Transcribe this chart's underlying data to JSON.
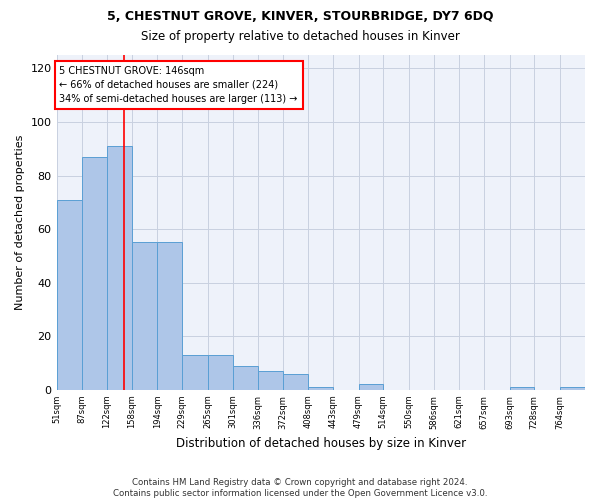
{
  "title": "5, CHESTNUT GROVE, KINVER, STOURBRIDGE, DY7 6DQ",
  "subtitle": "Size of property relative to detached houses in Kinver",
  "xlabel": "Distribution of detached houses by size in Kinver",
  "ylabel": "Number of detached properties",
  "bin_labels": [
    "51sqm",
    "87sqm",
    "122sqm",
    "158sqm",
    "194sqm",
    "229sqm",
    "265sqm",
    "301sqm",
    "336sqm",
    "372sqm",
    "408sqm",
    "443sqm",
    "479sqm",
    "514sqm",
    "550sqm",
    "586sqm",
    "621sqm",
    "657sqm",
    "693sqm",
    "728sqm",
    "764sqm"
  ],
  "bin_edges": [
    51,
    87,
    122,
    158,
    194,
    229,
    265,
    301,
    336,
    372,
    408,
    443,
    479,
    514,
    550,
    586,
    621,
    657,
    693,
    728,
    764,
    800
  ],
  "bar_heights": [
    71,
    87,
    91,
    55,
    55,
    13,
    13,
    9,
    7,
    6,
    1,
    0,
    2,
    0,
    0,
    0,
    0,
    0,
    1,
    0,
    1
  ],
  "bar_color": "#aec6e8",
  "bar_edge_color": "#5a9fd4",
  "vline_x": 146,
  "vline_color": "red",
  "annotation_line1": "5 CHESTNUT GROVE: 146sqm",
  "annotation_line2": "← 66% of detached houses are smaller (224)",
  "annotation_line3": "34% of semi-detached houses are larger (113) →",
  "annotation_box_color": "white",
  "annotation_box_edge_color": "red",
  "ylim": [
    0,
    125
  ],
  "yticks": [
    0,
    20,
    40,
    60,
    80,
    100,
    120
  ],
  "grid_color": "#c8d0e0",
  "bg_color": "#eef2fa",
  "footer_line1": "Contains HM Land Registry data © Crown copyright and database right 2024.",
  "footer_line2": "Contains public sector information licensed under the Open Government Licence v3.0.",
  "title_fontsize": 9,
  "subtitle_fontsize": 8.5,
  "ylabel_fontsize": 8,
  "xlabel_fontsize": 8.5
}
